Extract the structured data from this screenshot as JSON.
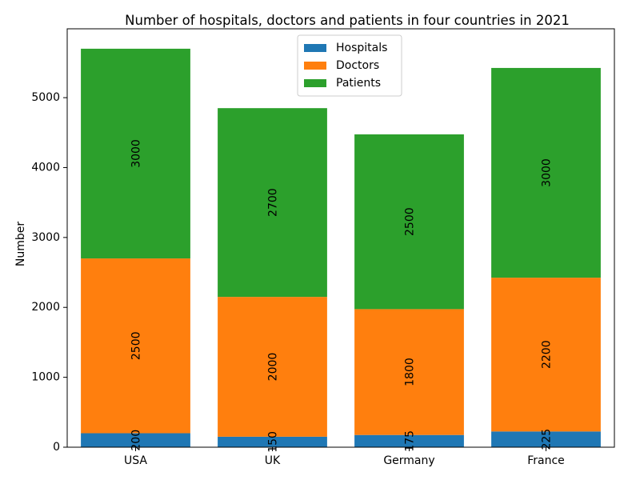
{
  "chart_data": {
    "type": "bar",
    "stacked": true,
    "title": "Number of hospitals, doctors and patients in four countries in 2021",
    "xlabel": "",
    "ylabel": "Number",
    "categories": [
      "USA",
      "UK",
      "Germany",
      "France"
    ],
    "series": [
      {
        "name": "Hospitals",
        "values": [
          200,
          150,
          175,
          225
        ],
        "color": "#1f77b4"
      },
      {
        "name": "Doctors",
        "values": [
          2500,
          2000,
          1800,
          2200
        ],
        "color": "#ff7f0e"
      },
      {
        "name": "Patients",
        "values": [
          3000,
          2700,
          2500,
          3000
        ],
        "color": "#2ca02c"
      }
    ],
    "ylim": [
      0,
      5985
    ],
    "yticks": [
      0,
      1000,
      2000,
      3000,
      4000,
      5000
    ],
    "legend": "upper-center",
    "grid": false
  }
}
